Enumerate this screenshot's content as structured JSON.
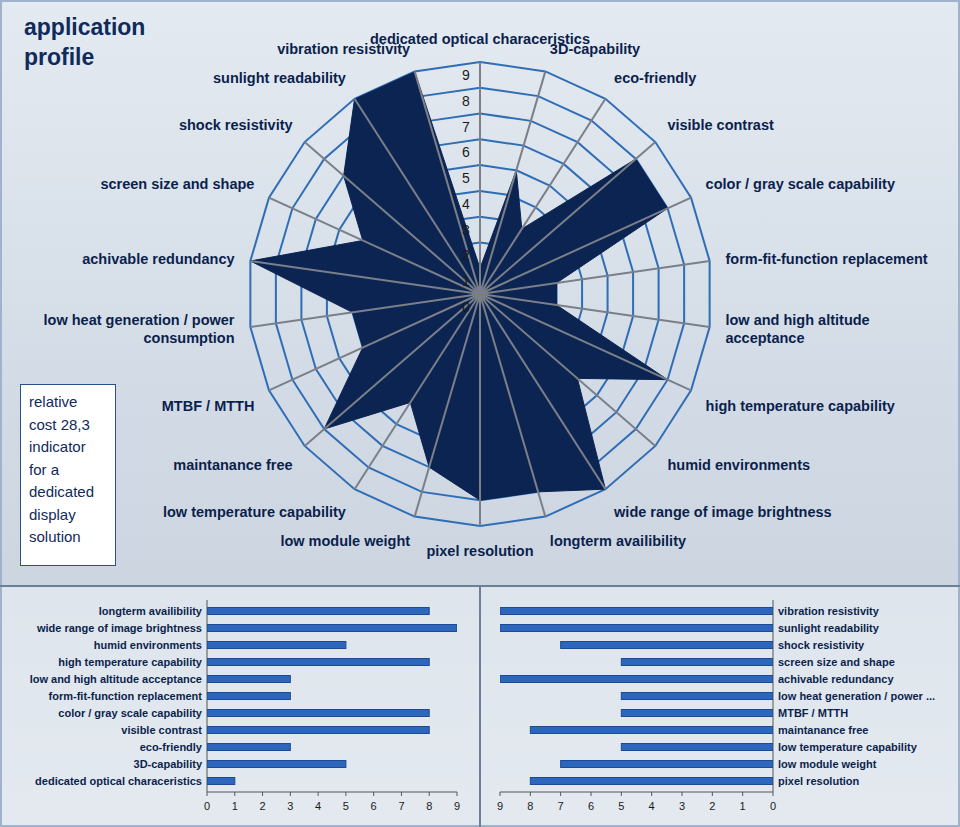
{
  "chart_data": [
    {
      "type": "radar",
      "title": "application profile",
      "annotation": "relative cost  28,3 indicator for a dedicated display solution",
      "categories": [
        "dedicated optical characeristics",
        "3D-capability",
        "eco-friendly",
        "visible contrast",
        "color / gray scale capability",
        "form-fit-function replacement",
        "low and high altitude acceptance",
        "high temperature capability",
        "humid environments",
        "wide range of image brightness",
        "longterm availibility",
        "pixel resolution",
        "low module weight",
        "low temperature capability",
        "maintanance free",
        "MTBF / MTTH",
        "low heat generation / power consumption",
        "achivable redundancy",
        "screen size and shape",
        "shock  resistivity",
        "sunlight readability",
        "vibration resistivity"
      ],
      "values": [
        1,
        5,
        3,
        8,
        8,
        3,
        3,
        8,
        5,
        9,
        8,
        8,
        7,
        5,
        8,
        5,
        5,
        9,
        5,
        7,
        9,
        9
      ],
      "color": "#0c2452",
      "ylim": [
        0,
        9
      ],
      "yticks": [
        0,
        1,
        2,
        3,
        4,
        5,
        6,
        7,
        8,
        9
      ],
      "grid": true
    },
    {
      "type": "bar",
      "orientation": "horizontal",
      "categories": [
        "longterm availibility",
        "wide range of image brightness",
        "humid environments",
        "high temperature capability",
        "low and high altitude acceptance",
        "form-fit-function replacement",
        "color / gray scale capability",
        "visible contrast",
        "eco-friendly",
        "3D-capability",
        "dedicated optical characeristics"
      ],
      "values": [
        8,
        9,
        5,
        8,
        3,
        3,
        8,
        8,
        3,
        5,
        1
      ],
      "color": "#2d67bd",
      "xlim": [
        0,
        9
      ],
      "xticks": [
        0,
        1,
        2,
        3,
        4,
        5,
        6,
        7,
        8,
        9
      ]
    },
    {
      "type": "bar",
      "orientation": "horizontal",
      "categories": [
        "vibration resistivity",
        "sunlight readability",
        "shock  resistivity",
        "screen size and shape",
        "achivable redundancy",
        "low heat generation / power ...",
        "MTBF / MTTH",
        "maintanance free",
        "low temperature capability",
        "low module weight",
        "pixel resolution"
      ],
      "values": [
        9,
        9,
        7,
        5,
        9,
        5,
        5,
        8,
        5,
        7,
        8
      ],
      "color": "#2d67bd",
      "xlim": [
        9,
        0
      ],
      "xticks": [
        9,
        8,
        7,
        6,
        5,
        4,
        3,
        2,
        1,
        0
      ]
    }
  ]
}
